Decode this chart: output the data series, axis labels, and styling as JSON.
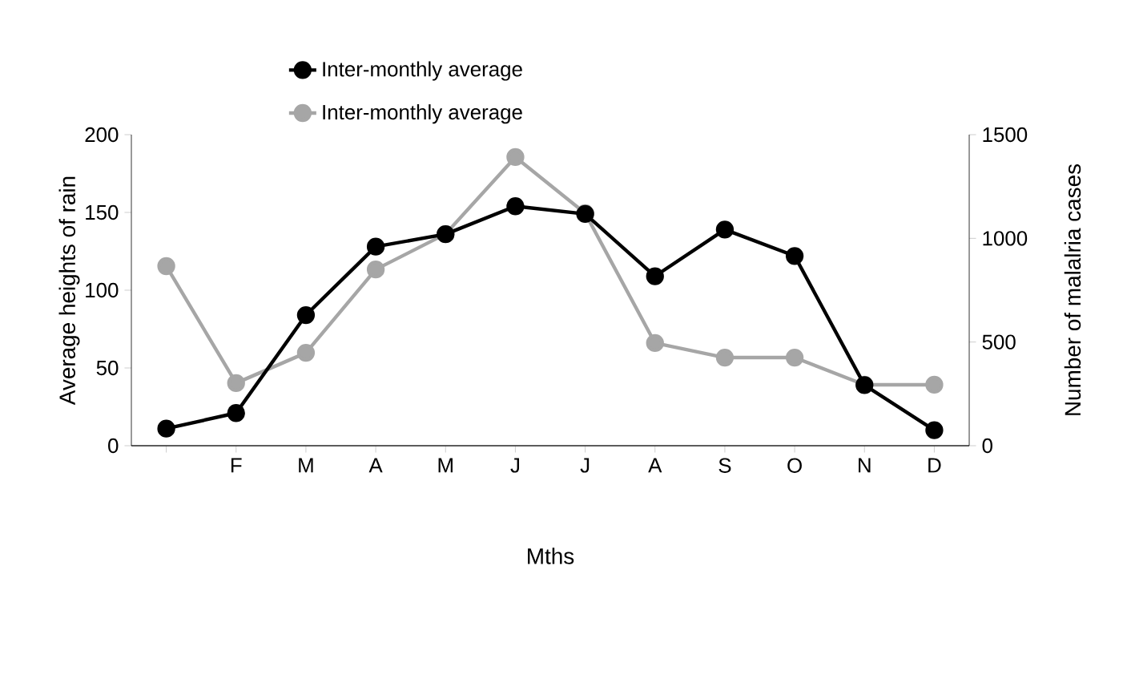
{
  "chart_data": {
    "type": "line",
    "xlabel": "Mths",
    "ylabel": "Average heights of rain",
    "y2label": "Number of malalria cases",
    "categories": [
      null,
      "F",
      "M",
      "A",
      "M",
      "J",
      "J",
      "A",
      "S",
      "O",
      "N",
      "D"
    ],
    "series": [
      {
        "name": "Inter-monthly average",
        "color": "#000000",
        "values": [
          11,
          21,
          84,
          128,
          136,
          154,
          149,
          109,
          139,
          122,
          39,
          10
        ]
      },
      {
        "name": "Inter-monthly average",
        "color": "#a6a6a6",
        "axis": "y2",
        "values": [
          866,
          302,
          448,
          850,
          1021,
          1392,
          1121,
          495,
          425,
          425,
          294,
          294
        ]
      }
    ],
    "ylim": [
      0,
      200
    ],
    "yticks": [
      0,
      50,
      100,
      150,
      200
    ],
    "y2lim": [
      0,
      1500
    ],
    "y2ticks": [
      0,
      500,
      1000,
      1500
    ],
    "legend": "top",
    "marker": "circle",
    "line_style": "solid"
  }
}
